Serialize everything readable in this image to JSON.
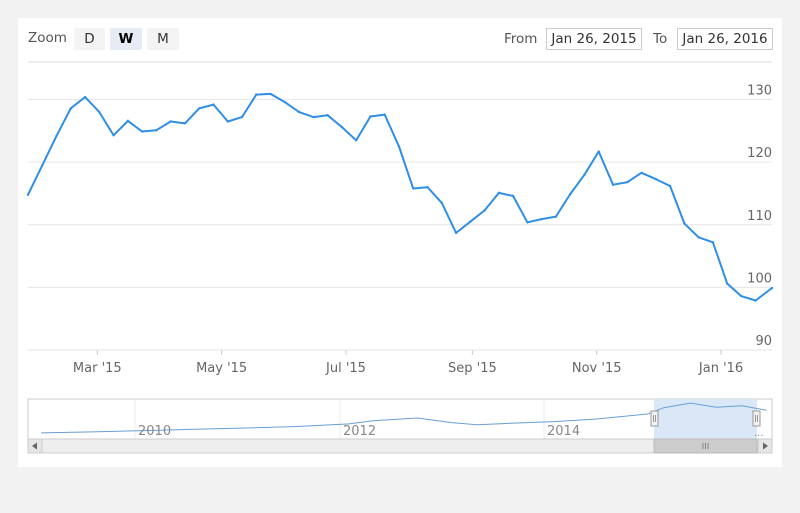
{
  "toolbar": {
    "zoom_label": "Zoom",
    "zoom_buttons": [
      "D",
      "W",
      "M"
    ],
    "active_zoom": "W",
    "from_label": "From",
    "from_value": "Jan 26, 2015",
    "to_label": "To",
    "to_value": "Jan 26, 2016"
  },
  "colors": {
    "series": "#2f8fe6",
    "navigator_fill": "#d6e4f5",
    "grid": "#e6e6e6"
  },
  "chart_data": {
    "type": "line",
    "title": "",
    "xlabel": "",
    "ylabel": "",
    "ylim": [
      90,
      136
    ],
    "xlim": [
      "2015-01-26",
      "2016-01-26"
    ],
    "y_ticks": [
      "90",
      "100",
      "110",
      "120",
      "130"
    ],
    "x_ticks": [
      {
        "label": "Mar '15",
        "date": "2015-03-01"
      },
      {
        "label": "May '15",
        "date": "2015-05-01"
      },
      {
        "label": "Jul '15",
        "date": "2015-07-01"
      },
      {
        "label": "Sep '15",
        "date": "2015-09-01"
      },
      {
        "label": "Nov '15",
        "date": "2015-11-01"
      },
      {
        "label": "Jan '16",
        "date": "2016-01-01"
      }
    ],
    "grid": true,
    "series": [
      {
        "name": "",
        "points": [
          [
            "2015-01-26",
            114.8
          ],
          [
            "2015-02-02",
            119.5
          ],
          [
            "2015-02-09",
            124.2
          ],
          [
            "2015-02-16",
            128.6
          ],
          [
            "2015-02-23",
            130.4
          ],
          [
            "2015-03-02",
            128.0
          ],
          [
            "2015-03-09",
            124.3
          ],
          [
            "2015-03-16",
            126.6
          ],
          [
            "2015-03-23",
            124.9
          ],
          [
            "2015-03-30",
            125.1
          ],
          [
            "2015-04-06",
            126.5
          ],
          [
            "2015-04-13",
            126.2
          ],
          [
            "2015-04-20",
            128.6
          ],
          [
            "2015-04-27",
            129.2
          ],
          [
            "2015-05-04",
            126.5
          ],
          [
            "2015-05-11",
            127.2
          ],
          [
            "2015-05-18",
            130.8
          ],
          [
            "2015-05-25",
            130.9
          ],
          [
            "2015-06-01",
            129.6
          ],
          [
            "2015-06-08",
            128.0
          ],
          [
            "2015-06-15",
            127.2
          ],
          [
            "2015-06-22",
            127.5
          ],
          [
            "2015-06-29",
            125.6
          ],
          [
            "2015-07-06",
            123.5
          ],
          [
            "2015-07-13",
            127.3
          ],
          [
            "2015-07-20",
            127.6
          ],
          [
            "2015-07-27",
            122.5
          ],
          [
            "2015-08-03",
            115.8
          ],
          [
            "2015-08-10",
            116.0
          ],
          [
            "2015-08-17",
            113.5
          ],
          [
            "2015-08-24",
            108.7
          ],
          [
            "2015-08-31",
            110.5
          ],
          [
            "2015-09-07",
            112.3
          ],
          [
            "2015-09-14",
            115.1
          ],
          [
            "2015-09-21",
            114.6
          ],
          [
            "2015-09-28",
            110.4
          ],
          [
            "2015-10-05",
            110.9
          ],
          [
            "2015-10-12",
            111.3
          ],
          [
            "2015-10-19",
            114.9
          ],
          [
            "2015-10-26",
            118.0
          ],
          [
            "2015-11-02",
            121.7
          ],
          [
            "2015-11-09",
            116.4
          ],
          [
            "2015-11-16",
            116.8
          ],
          [
            "2015-11-23",
            118.3
          ],
          [
            "2015-11-30",
            117.3
          ],
          [
            "2015-12-07",
            116.2
          ],
          [
            "2015-12-14",
            110.2
          ],
          [
            "2015-12-21",
            108.0
          ],
          [
            "2015-12-28",
            107.2
          ],
          [
            "2016-01-04",
            100.6
          ],
          [
            "2016-01-11",
            98.6
          ],
          [
            "2016-01-18",
            97.9
          ],
          [
            "2016-01-26",
            99.9
          ]
        ]
      }
    ]
  },
  "navigator": {
    "year_labels": [
      "2010",
      "2012",
      "2014"
    ],
    "ellipsis": "...",
    "range_start": "2015-01-26",
    "range_end": "2016-01-26",
    "series": [
      [
        "2009-01-01",
        12
      ],
      [
        "2009-07-01",
        16
      ],
      [
        "2010-01-01",
        21
      ],
      [
        "2010-07-01",
        26
      ],
      [
        "2011-01-01",
        31
      ],
      [
        "2011-07-01",
        37
      ],
      [
        "2012-01-01",
        47
      ],
      [
        "2012-04-01",
        60
      ],
      [
        "2012-09-01",
        70
      ],
      [
        "2013-01-01",
        52
      ],
      [
        "2013-04-01",
        44
      ],
      [
        "2013-09-01",
        51
      ],
      [
        "2014-01-01",
        56
      ],
      [
        "2014-06-01",
        66
      ],
      [
        "2014-12-01",
        86
      ],
      [
        "2015-01-26",
        110
      ],
      [
        "2015-05-01",
        128
      ],
      [
        "2015-08-01",
        112
      ],
      [
        "2015-11-01",
        118
      ],
      [
        "2016-01-26",
        100
      ]
    ]
  }
}
